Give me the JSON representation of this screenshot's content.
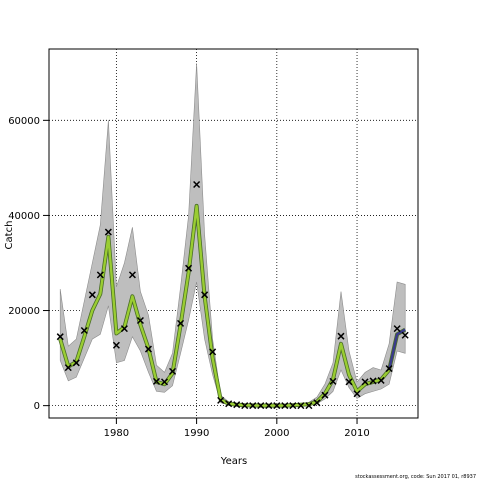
{
  "chart_data": {
    "type": "line",
    "xlabel": "Years",
    "ylabel": "Catch",
    "xlim": [
      1971.6,
      2017.6
    ],
    "ylim": [
      -2600,
      75000
    ],
    "x_ticks": [
      1980,
      1990,
      2000,
      2010
    ],
    "y_ticks": [
      0,
      20000,
      40000,
      60000
    ],
    "grid": "dotted",
    "colors": {
      "band": "#bebebe",
      "band_edge": "#8c8c8c",
      "fit": "#9acd32",
      "fit_outline": "#4a6d28",
      "fit_recent": "#3a3a8c",
      "observed": "#000000"
    },
    "years": [
      1973,
      1974,
      1975,
      1976,
      1977,
      1978,
      1979,
      1980,
      1981,
      1982,
      1983,
      1984,
      1985,
      1986,
      1987,
      1988,
      1989,
      1990,
      1991,
      1992,
      1993,
      1994,
      1995,
      1996,
      1997,
      1998,
      1999,
      2000,
      2001,
      2002,
      2003,
      2004,
      2005,
      2006,
      2007,
      2008,
      2009,
      2010,
      2011,
      2012,
      2013,
      2014,
      2015,
      2016
    ],
    "series": [
      {
        "name": "",
        "kind": "estimate",
        "values": [
          14000,
          8200,
          9200,
          14500,
          20000,
          23500,
          35500,
          15200,
          16500,
          23000,
          17000,
          12000,
          5000,
          4500,
          6800,
          17000,
          28000,
          42000,
          23000,
          10000,
          1200,
          400,
          200,
          100,
          50,
          0,
          0,
          0,
          0,
          100,
          200,
          300,
          800,
          2500,
          5500,
          13000,
          6500,
          3000,
          4500,
          5000,
          5500,
          7500,
          15000,
          16000
        ]
      },
      {
        "name": "",
        "kind": "band",
        "upper": [
          24500,
          12500,
          14000,
          22000,
          30000,
          38000,
          60000,
          25000,
          30000,
          37500,
          24000,
          19000,
          8500,
          7000,
          11000,
          25000,
          40000,
          72000,
          36000,
          14000,
          2200,
          800,
          400,
          200,
          100,
          50,
          20,
          20,
          50,
          200,
          400,
          700,
          1800,
          4500,
          9000,
          24000,
          11500,
          5000,
          7000,
          8000,
          7500,
          13000,
          26000,
          25500
        ],
        "lower": [
          9500,
          5200,
          6000,
          10000,
          14000,
          15000,
          21000,
          9000,
          9500,
          14500,
          11500,
          7000,
          3000,
          2800,
          4200,
          11000,
          18000,
          26000,
          14000,
          6500,
          600,
          200,
          100,
          50,
          20,
          0,
          0,
          0,
          0,
          50,
          100,
          150,
          400,
          1400,
          3000,
          7500,
          3800,
          1500,
          2500,
          3000,
          3500,
          4500,
          11500,
          11000
        ]
      },
      {
        "name": "",
        "kind": "observed",
        "x": [
          1973,
          1974,
          1975,
          1976,
          1977,
          1978,
          1979,
          1980,
          1981,
          1982,
          1983,
          1984,
          1985,
          1986,
          1987,
          1988,
          1989,
          1990,
          1991,
          1992,
          1993,
          1994,
          1995,
          1996,
          1997,
          1998,
          1999,
          2000,
          2001,
          2002,
          2003,
          2004,
          2005,
          2006,
          2007,
          2008,
          2009,
          2010,
          2011,
          2012,
          2013,
          2014,
          2015,
          2016
        ],
        "values": [
          14500,
          8000,
          9000,
          15800,
          23300,
          27500,
          36500,
          12700,
          16200,
          27500,
          17900,
          11900,
          5100,
          5000,
          7200,
          17300,
          28900,
          46500,
          23300,
          11300,
          1100,
          400,
          200,
          0,
          0,
          0,
          0,
          0,
          0,
          0,
          0,
          0,
          600,
          2200,
          5100,
          14600,
          5000,
          2500,
          5000,
          5200,
          5300,
          7800,
          16200,
          14800
        ]
      }
    ],
    "footer": "stockassessment.org, code: Sun 2017 01, r8937"
  }
}
